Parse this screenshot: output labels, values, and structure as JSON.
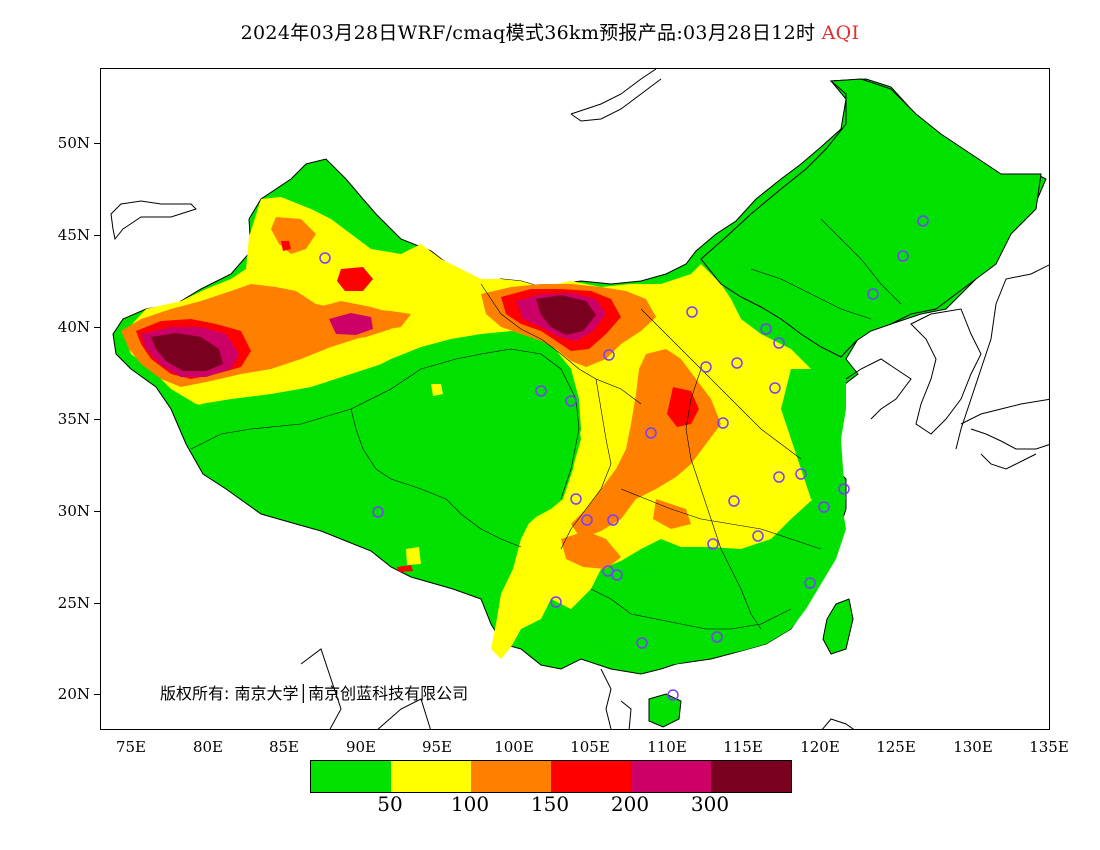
{
  "title": {
    "prefix": "2024年03月28日WRF/cmaq模式36km预报产品:03月28日12时",
    "variable": "AQI"
  },
  "axes": {
    "lat_labels": [
      "50N",
      "45N",
      "40N",
      "35N",
      "30N",
      "25N",
      "20N"
    ],
    "lon_labels": [
      "75E",
      "80E",
      "85E",
      "90E",
      "95E",
      "100E",
      "105E",
      "110E",
      "115E",
      "120E",
      "125E",
      "130E",
      "135E"
    ]
  },
  "legend": {
    "colors": [
      "#00e100",
      "#ffff00",
      "#ff8000",
      "#ff0000",
      "#cc0066",
      "#7a0020"
    ],
    "labels": [
      "50",
      "100",
      "150",
      "200",
      "300"
    ]
  },
  "copyright": "版权所有: 南京大学│南京创蓝科技有限公司",
  "colors": {
    "green": "#00e100",
    "yellow": "#ffff00",
    "orange": "#ff8000",
    "red": "#ff0000",
    "magenta": "#cc0066",
    "maroon": "#7a0020",
    "station": "#7a3cff",
    "title_accent": "#e03030"
  }
}
